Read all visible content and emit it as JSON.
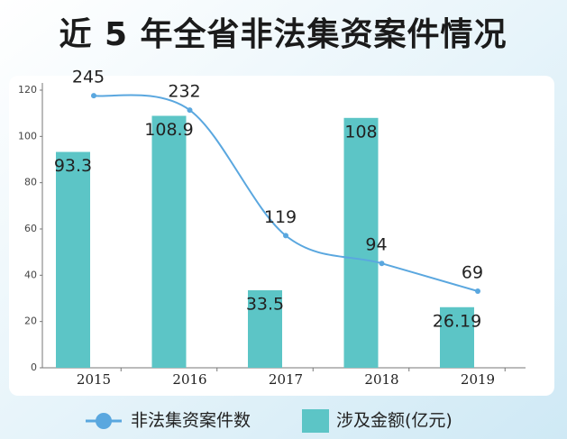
{
  "chart_data": {
    "type": "bar_line",
    "title": "近 5 年全省非法集资案件情况",
    "categories": [
      "2015",
      "2016",
      "2017",
      "2018",
      "2019"
    ],
    "series": [
      {
        "name": "涉及金额(亿元)",
        "type": "bar",
        "color": "#5cc5c6",
        "values": [
          93.3,
          108.9,
          33.5,
          108,
          26.19
        ]
      },
      {
        "name": "非法集资案件数",
        "type": "line",
        "axis": "y2",
        "color": "#5aa7df",
        "values": [
          245,
          232,
          119,
          94,
          69
        ]
      }
    ],
    "ylim": [
      0,
      120
    ],
    "yticks": [
      0,
      20,
      40,
      60,
      80,
      100,
      120
    ],
    "y2lim": [
      0,
      250
    ],
    "legend": "bottom"
  }
}
